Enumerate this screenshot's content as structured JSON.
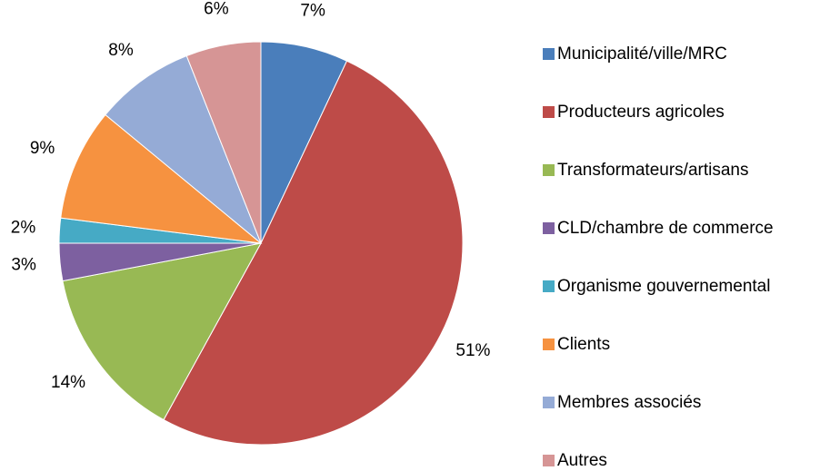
{
  "chart_data": {
    "type": "pie",
    "categories": [
      "Municipalité/ville/MRC",
      "Producteurs agricoles",
      "Transformateurs/artisans",
      "CLD/chambre de commerce",
      "Organisme gouvernemental",
      "Clients",
      "Membres associés",
      "Autres"
    ],
    "values": [
      7,
      51,
      14,
      3,
      2,
      9,
      8,
      6
    ],
    "value_labels": [
      "7%",
      "51%",
      "14%",
      "3%",
      "2%",
      "9%",
      "8%",
      "6%"
    ],
    "colors": [
      "#4a7ebb",
      "#be4b48",
      "#98b954",
      "#7d60a0",
      "#46aac5",
      "#f69240",
      "#95abd6",
      "#d69595"
    ],
    "legend": "right"
  }
}
